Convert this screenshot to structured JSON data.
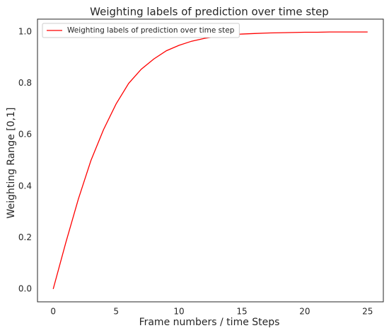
{
  "chart_data": {
    "type": "line",
    "title": "Weighting labels of prediction over time step",
    "x_label": "Frame numbers / time Steps",
    "y_label": "Weighting Range [0,1]",
    "x": [
      0,
      1,
      2,
      3,
      4,
      5,
      6,
      7,
      8,
      9,
      10,
      11,
      12,
      13,
      14,
      15,
      16,
      17,
      18,
      19,
      20,
      21,
      22,
      23,
      24,
      25
    ],
    "series": [
      {
        "name": "Weighting labels of prediction over time step",
        "color": "#ff0000",
        "values": [
          0,
          0.18,
          0.35,
          0.5,
          0.62,
          0.72,
          0.8,
          0.855,
          0.895,
          0.927,
          0.948,
          0.964,
          0.975,
          0.982,
          0.988,
          0.992,
          0.994,
          0.996,
          0.997,
          0.998,
          0.999,
          0.999,
          1.0,
          1.0,
          1.0,
          1.0
        ]
      }
    ],
    "xlim": [
      -1.25,
      26.25
    ],
    "ylim": [
      -0.05,
      1.05
    ],
    "xticks": [
      0,
      5,
      10,
      15,
      20,
      25
    ],
    "yticks": [
      {
        "value": 0,
        "label": "0.0"
      },
      {
        "value": 0.2,
        "label": "0.2"
      },
      {
        "value": 0.4,
        "label": "0.4"
      },
      {
        "value": 0.6,
        "label": "0.6"
      },
      {
        "value": 0.8,
        "label": "0.8"
      },
      {
        "value": 1,
        "label": "1.0"
      }
    ],
    "grid": false,
    "legend": "upper left"
  }
}
